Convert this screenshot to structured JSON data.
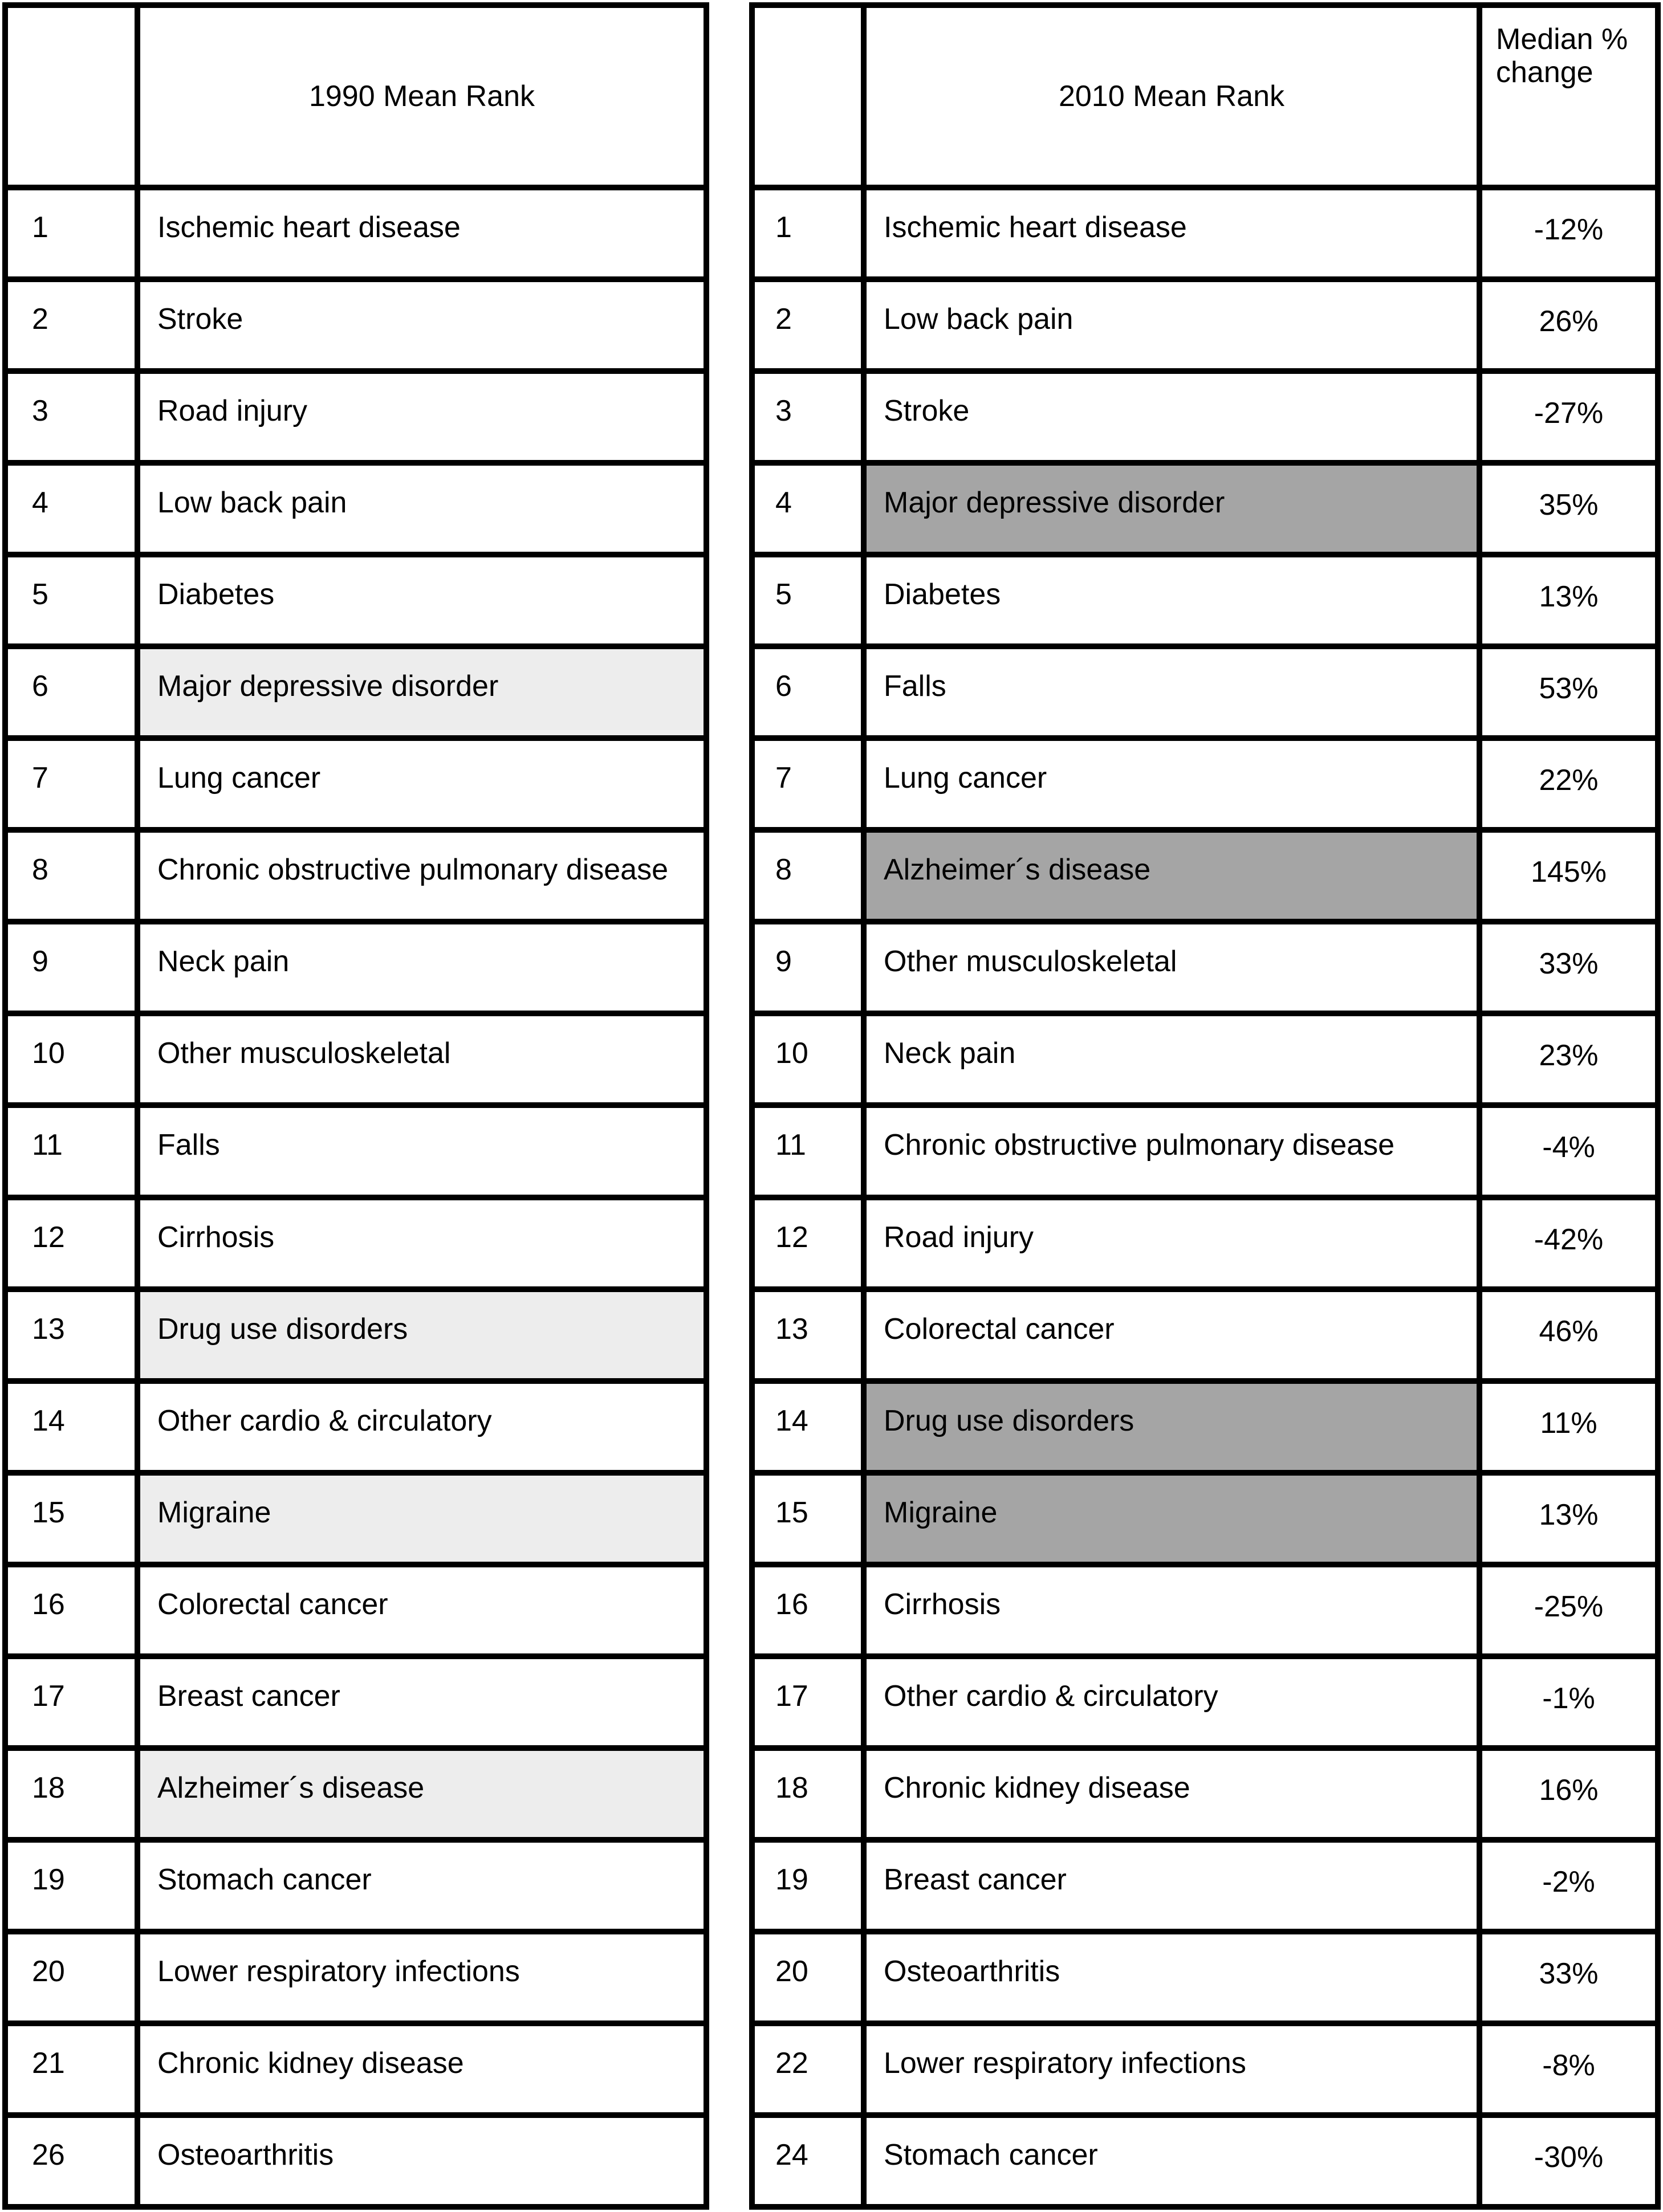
{
  "colors": {
    "border": "#000000",
    "background": "#ffffff",
    "text": "#000000",
    "highlight_1990": "#ededed",
    "highlight_2010": "#a5a5a5"
  },
  "chart_data": [
    {
      "type": "table",
      "title": "1990 Mean Rank",
      "columns": [
        "rank",
        "cause"
      ],
      "highlight_color": "#ededed",
      "highlight_note": "light gray cause cells",
      "rows": [
        {
          "rank": "1",
          "cause": "Ischemic heart disease",
          "highlight": false
        },
        {
          "rank": "2",
          "cause": "Stroke",
          "highlight": false
        },
        {
          "rank": "3",
          "cause": "Road injury",
          "highlight": false
        },
        {
          "rank": "4",
          "cause": "Low back pain",
          "highlight": false
        },
        {
          "rank": "5",
          "cause": "Diabetes",
          "highlight": false
        },
        {
          "rank": "6",
          "cause": "Major depressive disorder",
          "highlight": true
        },
        {
          "rank": "7",
          "cause": "Lung cancer",
          "highlight": false
        },
        {
          "rank": "8",
          "cause": "Chronic obstructive pulmonary disease",
          "highlight": false
        },
        {
          "rank": "9",
          "cause": "Neck pain",
          "highlight": false
        },
        {
          "rank": "10",
          "cause": "Other musculoskeletal",
          "highlight": false
        },
        {
          "rank": "11",
          "cause": "Falls",
          "highlight": false
        },
        {
          "rank": "12",
          "cause": "Cirrhosis",
          "highlight": false
        },
        {
          "rank": "13",
          "cause": "Drug use disorders",
          "highlight": true
        },
        {
          "rank": "14",
          "cause": "Other cardio & circulatory",
          "highlight": false
        },
        {
          "rank": "15",
          "cause": "Migraine",
          "highlight": true
        },
        {
          "rank": "16",
          "cause": "Colorectal cancer",
          "highlight": false
        },
        {
          "rank": "17",
          "cause": "Breast cancer",
          "highlight": false
        },
        {
          "rank": "18",
          "cause": "Alzheimer´s disease",
          "highlight": true
        },
        {
          "rank": "19",
          "cause": "Stomach cancer",
          "highlight": false
        },
        {
          "rank": "20",
          "cause": "Lower respiratory infections",
          "highlight": false
        },
        {
          "rank": "21",
          "cause": "Chronic kidney disease",
          "highlight": false
        },
        {
          "rank": "26",
          "cause": "Osteoarthritis",
          "highlight": false
        }
      ]
    },
    {
      "type": "table",
      "title": "2010 Mean Rank",
      "change_header": "Median % change",
      "columns": [
        "rank",
        "cause",
        "median_pct_change"
      ],
      "highlight_color": "#a5a5a5",
      "highlight_note": "dark gray cause cells",
      "rows": [
        {
          "rank": "1",
          "cause": "Ischemic heart disease",
          "change": "-12%",
          "highlight": false
        },
        {
          "rank": "2",
          "cause": "Low back pain",
          "change": "26%",
          "highlight": false
        },
        {
          "rank": "3",
          "cause": "Stroke",
          "change": "-27%",
          "highlight": false
        },
        {
          "rank": "4",
          "cause": "Major depressive disorder",
          "change": "35%",
          "highlight": true
        },
        {
          "rank": "5",
          "cause": "Diabetes",
          "change": "13%",
          "highlight": false
        },
        {
          "rank": "6",
          "cause": "Falls",
          "change": "53%",
          "highlight": false
        },
        {
          "rank": "7",
          "cause": "Lung cancer",
          "change": "22%",
          "highlight": false
        },
        {
          "rank": "8",
          "cause": "Alzheimer´s disease",
          "change": "145%",
          "highlight": true
        },
        {
          "rank": "9",
          "cause": "Other musculoskeletal",
          "change": "33%",
          "highlight": false
        },
        {
          "rank": "10",
          "cause": "Neck pain",
          "change": "23%",
          "highlight": false
        },
        {
          "rank": "11",
          "cause": "Chronic obstructive pulmonary disease",
          "change": "-4%",
          "highlight": false
        },
        {
          "rank": "12",
          "cause": "Road injury",
          "change": "-42%",
          "highlight": false
        },
        {
          "rank": "13",
          "cause": "Colorectal cancer",
          "change": "46%",
          "highlight": false
        },
        {
          "rank": "14",
          "cause": "Drug use disorders",
          "change": "11%",
          "highlight": true
        },
        {
          "rank": "15",
          "cause": "Migraine",
          "change": "13%",
          "highlight": true
        },
        {
          "rank": "16",
          "cause": "Cirrhosis",
          "change": "-25%",
          "highlight": false
        },
        {
          "rank": "17",
          "cause": "Other cardio & circulatory",
          "change": "-1%",
          "highlight": false
        },
        {
          "rank": "18",
          "cause": "Chronic kidney disease",
          "change": "16%",
          "highlight": false
        },
        {
          "rank": "19",
          "cause": "Breast cancer",
          "change": "-2%",
          "highlight": false
        },
        {
          "rank": "20",
          "cause": "Osteoarthritis",
          "change": "33%",
          "highlight": false
        },
        {
          "rank": "22",
          "cause": "Lower respiratory infections",
          "change": "-8%",
          "highlight": false
        },
        {
          "rank": "24",
          "cause": "Stomach cancer",
          "change": "-30%",
          "highlight": false
        }
      ]
    }
  ]
}
